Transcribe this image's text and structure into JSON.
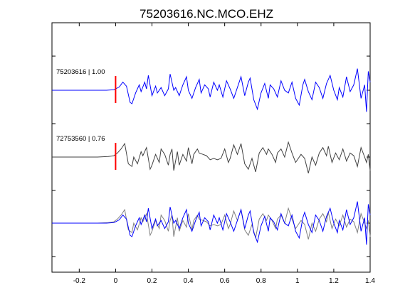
{
  "chart_data": {
    "type": "line",
    "title": "75203616.NC.MCO.EHZ",
    "xlabel": "",
    "ylabel": "",
    "xlim": [
      -0.35,
      1.4
    ],
    "xticks": [
      -0.2,
      0,
      0.2,
      0.4,
      0.6,
      0.8,
      1,
      1.2,
      1.4
    ],
    "xtick_labels": [
      "-0.2",
      "0",
      "0.2",
      "0.4",
      "0.6",
      "0.8",
      "1",
      "1.2",
      "1.4"
    ],
    "grid": false,
    "pick_time": 0,
    "colors": {
      "master": "#0000ff",
      "correlated": "#404040",
      "overlay_gray": "#808080",
      "pick": "#ff0000"
    },
    "traces": [
      {
        "label": "75203616 | 1.00",
        "color": "#0000ff",
        "row": 0,
        "points": [
          [
            -0.35,
            0
          ],
          [
            -0.05,
            0
          ],
          [
            -0.01,
            0.02
          ],
          [
            0.0,
            0.05
          ],
          [
            0.02,
            0.12
          ],
          [
            0.04,
            0.3
          ],
          [
            0.06,
            0.15
          ],
          [
            0.08,
            -0.45
          ],
          [
            0.09,
            -0.5
          ],
          [
            0.11,
            -0.1
          ],
          [
            0.13,
            0.2
          ],
          [
            0.14,
            -0.05
          ],
          [
            0.16,
            0.3
          ],
          [
            0.17,
            0.05
          ],
          [
            0.18,
            0.55
          ],
          [
            0.2,
            -0.2
          ],
          [
            0.22,
            0.15
          ],
          [
            0.23,
            -0.1
          ],
          [
            0.25,
            0.1
          ],
          [
            0.27,
            -0.2
          ],
          [
            0.29,
            0.05
          ],
          [
            0.3,
            0.6
          ],
          [
            0.32,
            0.0
          ],
          [
            0.33,
            0.1
          ],
          [
            0.35,
            -0.2
          ],
          [
            0.37,
            0.2
          ],
          [
            0.39,
            0.5
          ],
          [
            0.4,
            0.0
          ],
          [
            0.42,
            -0.3
          ],
          [
            0.44,
            0.1
          ],
          [
            0.46,
            0.4
          ],
          [
            0.47,
            -0.1
          ],
          [
            0.49,
            0.2
          ],
          [
            0.51,
            0.05
          ],
          [
            0.52,
            -0.25
          ],
          [
            0.54,
            0.3
          ],
          [
            0.56,
            0.0
          ],
          [
            0.57,
            0.2
          ],
          [
            0.59,
            -0.25
          ],
          [
            0.61,
            0.35
          ],
          [
            0.63,
            0.05
          ],
          [
            0.65,
            -0.3
          ],
          [
            0.67,
            0.1
          ],
          [
            0.69,
            0.5
          ],
          [
            0.71,
            -0.2
          ],
          [
            0.73,
            0.3
          ],
          [
            0.74,
            0.45
          ],
          [
            0.76,
            -0.35
          ],
          [
            0.78,
            -0.7
          ],
          [
            0.8,
            -0.1
          ],
          [
            0.82,
            0.25
          ],
          [
            0.84,
            -0.3
          ],
          [
            0.85,
            0.2
          ],
          [
            0.87,
            0.05
          ],
          [
            0.89,
            -0.25
          ],
          [
            0.91,
            0.35
          ],
          [
            0.93,
            0.0
          ],
          [
            0.95,
            -0.1
          ],
          [
            0.97,
            0.3
          ],
          [
            0.99,
            -0.3
          ],
          [
            1.01,
            -0.55
          ],
          [
            1.03,
            0.2
          ],
          [
            1.04,
            0.4
          ],
          [
            1.06,
            -0.05
          ],
          [
            1.08,
            -0.35
          ],
          [
            1.1,
            0.3
          ],
          [
            1.12,
            0.1
          ],
          [
            1.14,
            -0.3
          ],
          [
            1.16,
            0.25
          ],
          [
            1.18,
            0.55
          ],
          [
            1.2,
            0.0
          ],
          [
            1.22,
            -0.35
          ],
          [
            1.23,
            0.1
          ],
          [
            1.25,
            -0.25
          ],
          [
            1.27,
            0.5
          ],
          [
            1.29,
            -0.05
          ],
          [
            1.31,
            0.2
          ],
          [
            1.33,
            0.8
          ],
          [
            1.35,
            -0.3
          ],
          [
            1.37,
            0.2
          ],
          [
            1.38,
            -0.8
          ],
          [
            1.39,
            0.7
          ],
          [
            1.4,
            0.3
          ]
        ]
      },
      {
        "label": "72753560 | 0.76",
        "color": "#404040",
        "row": 1,
        "points": [
          [
            -0.35,
            0
          ],
          [
            -0.1,
            0
          ],
          [
            -0.04,
            0.02
          ],
          [
            -0.01,
            0.05
          ],
          [
            0.01,
            0.15
          ],
          [
            0.03,
            0.3
          ],
          [
            0.05,
            0.5
          ],
          [
            0.07,
            -0.25
          ],
          [
            0.09,
            -0.35
          ],
          [
            0.1,
            0.0
          ],
          [
            0.12,
            -0.25
          ],
          [
            0.14,
            0.2
          ],
          [
            0.15,
            0.05
          ],
          [
            0.17,
            0.35
          ],
          [
            0.19,
            -0.45
          ],
          [
            0.2,
            -0.3
          ],
          [
            0.22,
            0.1
          ],
          [
            0.24,
            -0.2
          ],
          [
            0.25,
            0.3
          ],
          [
            0.27,
            0.1
          ],
          [
            0.29,
            -0.3
          ],
          [
            0.3,
            0.1
          ],
          [
            0.31,
            0.3
          ],
          [
            0.32,
            -0.5
          ],
          [
            0.34,
            0.2
          ],
          [
            0.35,
            -0.3
          ],
          [
            0.37,
            0.1
          ],
          [
            0.39,
            -0.15
          ],
          [
            0.4,
            0.35
          ],
          [
            0.42,
            -0.25
          ],
          [
            0.43,
            0.1
          ],
          [
            0.45,
            0.3
          ],
          [
            0.46,
            0.15
          ],
          [
            0.48,
            0.1
          ],
          [
            0.5,
            0.05
          ],
          [
            0.52,
            -0.1
          ],
          [
            0.54,
            -0.05
          ],
          [
            0.56,
            -0.1
          ],
          [
            0.58,
            -0.05
          ],
          [
            0.6,
            0.3
          ],
          [
            0.62,
            -0.2
          ],
          [
            0.63,
            -0.05
          ],
          [
            0.65,
            0.45
          ],
          [
            0.67,
            0.1
          ],
          [
            0.69,
            0.5
          ],
          [
            0.71,
            -0.25
          ],
          [
            0.73,
            -0.45
          ],
          [
            0.75,
            -0.05
          ],
          [
            0.77,
            -0.55
          ],
          [
            0.79,
            0.15
          ],
          [
            0.81,
            0.35
          ],
          [
            0.83,
            0.1
          ],
          [
            0.84,
            0.3
          ],
          [
            0.86,
            0.1
          ],
          [
            0.88,
            -0.2
          ],
          [
            0.89,
            0.15
          ],
          [
            0.91,
            0.3
          ],
          [
            0.93,
            0.0
          ],
          [
            0.95,
            0.55
          ],
          [
            0.97,
            0.15
          ],
          [
            0.99,
            -0.2
          ],
          [
            1.01,
            0.0
          ],
          [
            1.02,
            0.1
          ],
          [
            1.04,
            -0.05
          ],
          [
            1.06,
            -0.6
          ],
          [
            1.08,
            0.0
          ],
          [
            1.1,
            -0.3
          ],
          [
            1.12,
            0.15
          ],
          [
            1.14,
            0.35
          ],
          [
            1.16,
            0.05
          ],
          [
            1.17,
            0.4
          ],
          [
            1.19,
            -0.2
          ],
          [
            1.21,
            0.15
          ],
          [
            1.23,
            -0.1
          ],
          [
            1.25,
            0.3
          ],
          [
            1.27,
            -0.15
          ],
          [
            1.29,
            0.15
          ],
          [
            1.31,
            0.05
          ],
          [
            1.33,
            -0.35
          ],
          [
            1.35,
            0.35
          ],
          [
            1.37,
            0.0
          ],
          [
            1.38,
            -0.2
          ],
          [
            1.39,
            0.1
          ],
          [
            1.4,
            -0.5
          ]
        ]
      }
    ],
    "overlay": {
      "row": 2,
      "series": [
        {
          "source": 1,
          "color": "#808080"
        },
        {
          "source": 0,
          "color": "#0000ff"
        }
      ]
    }
  }
}
